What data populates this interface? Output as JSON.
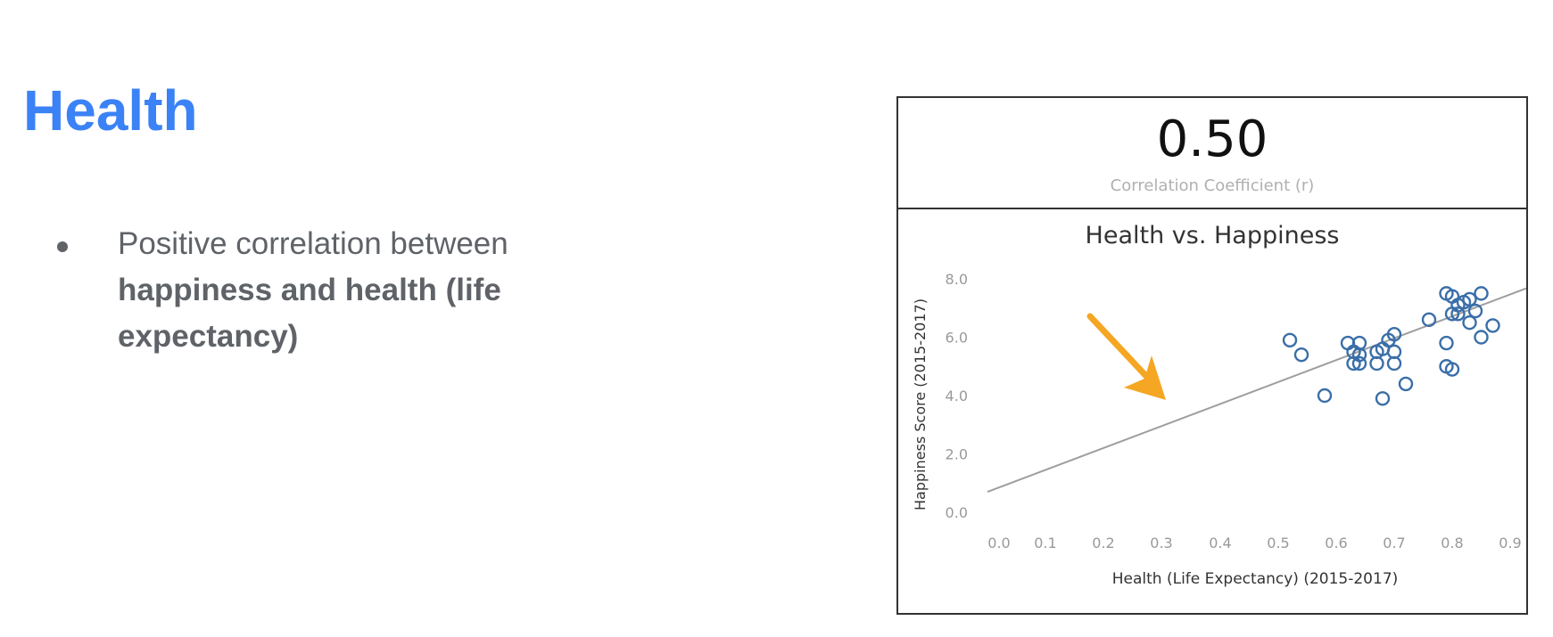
{
  "slide": {
    "title": "Health",
    "bullet": {
      "text_normal": "Positive correlation between",
      "text_bold": "happiness and health (life expectancy)"
    }
  },
  "metric": {
    "value": "0.50",
    "label": "Correlation Coefficient (r)"
  },
  "colors": {
    "title": "#3b82f6",
    "point": "#3a6ea8",
    "trendline": "#9e9e9e",
    "arrow": "#f5a623"
  },
  "chart_data": {
    "type": "scatter",
    "title": "Health vs. Happiness",
    "xlabel": "Health (Life Expectancy) (2015-2017)",
    "ylabel": "Happiness Score (2015-2017)",
    "xlim": [
      0.0,
      0.93
    ],
    "ylim": [
      0.0,
      8.5
    ],
    "x_ticks": [
      "0.0",
      "0.1",
      "0.2",
      "0.3",
      "0.4",
      "0.5",
      "0.6",
      "0.7",
      "0.8",
      "0.9"
    ],
    "y_ticks": [
      "0.0",
      "2.0",
      "4.0",
      "6.0",
      "8.0"
    ],
    "grid": false,
    "points": [
      [
        0.52,
        5.9
      ],
      [
        0.54,
        5.4
      ],
      [
        0.58,
        4.0
      ],
      [
        0.62,
        5.8
      ],
      [
        0.63,
        5.5
      ],
      [
        0.63,
        5.1
      ],
      [
        0.64,
        5.8
      ],
      [
        0.64,
        5.4
      ],
      [
        0.64,
        5.1
      ],
      [
        0.67,
        5.1
      ],
      [
        0.67,
        5.5
      ],
      [
        0.68,
        5.6
      ],
      [
        0.68,
        3.9
      ],
      [
        0.69,
        5.9
      ],
      [
        0.7,
        6.1
      ],
      [
        0.7,
        5.5
      ],
      [
        0.7,
        5.1
      ],
      [
        0.72,
        4.4
      ],
      [
        0.76,
        6.6
      ],
      [
        0.79,
        7.5
      ],
      [
        0.79,
        5.8
      ],
      [
        0.79,
        5.0
      ],
      [
        0.8,
        4.9
      ],
      [
        0.8,
        7.4
      ],
      [
        0.8,
        6.8
      ],
      [
        0.81,
        7.1
      ],
      [
        0.81,
        6.8
      ],
      [
        0.82,
        7.2
      ],
      [
        0.83,
        7.3
      ],
      [
        0.83,
        6.5
      ],
      [
        0.84,
        6.9
      ],
      [
        0.85,
        7.5
      ],
      [
        0.85,
        6.0
      ],
      [
        0.87,
        6.4
      ]
    ],
    "trendline": {
      "intercept": 0.7,
      "slope": 7.5
    },
    "annotation": {
      "type": "arrow"
    }
  }
}
